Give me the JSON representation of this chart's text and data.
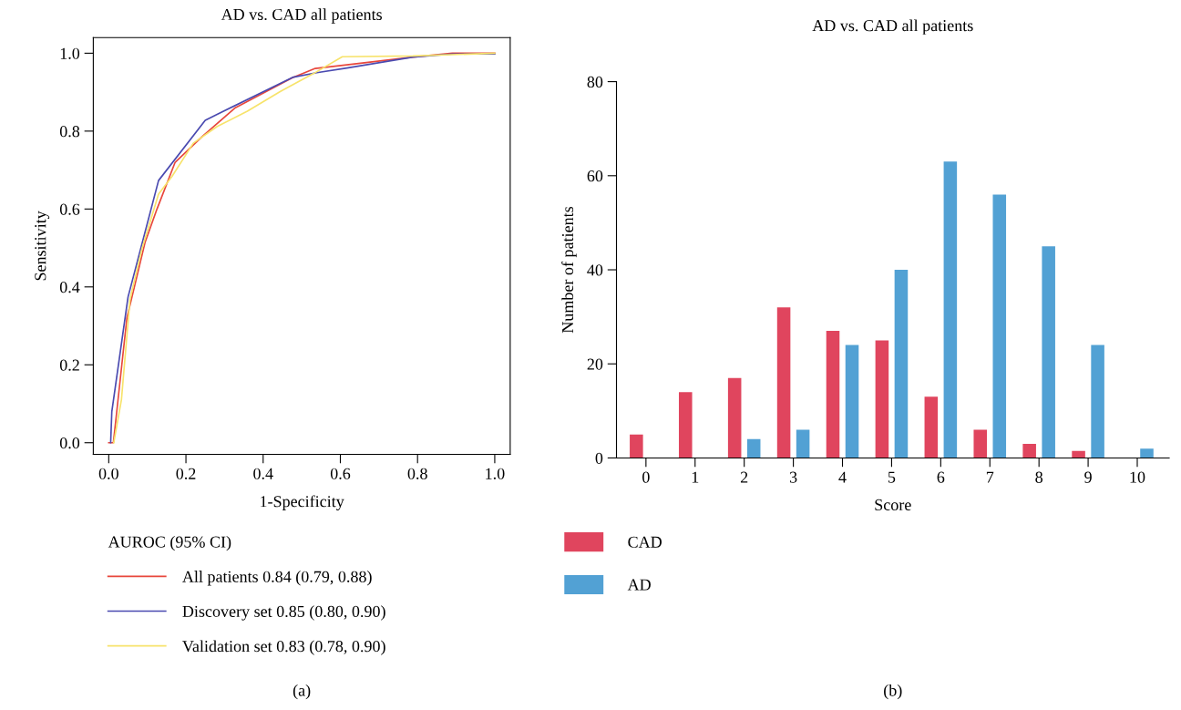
{
  "chart_data": [
    {
      "type": "line",
      "title": "AD vs. CAD all patients",
      "xlabel": "1-Specificity",
      "ylabel": "Sensitivity",
      "legend_title": "AUROC (95% CI)",
      "legend": "bottom",
      "annotations": [
        "(a)"
      ],
      "xlim": [
        -0.04,
        1.04
      ],
      "ylim": [
        -0.03,
        1.04
      ],
      "xticks": [
        {
          "value": 0,
          "label": "0.0"
        },
        0.2,
        0.4,
        0.6,
        0.8,
        {
          "value": 1,
          "label": "1.0"
        }
      ],
      "yticks": [
        {
          "value": 0,
          "label": "0.0"
        },
        0.2,
        0.4,
        0.6,
        0.8,
        {
          "value": 1,
          "label": "1.0"
        }
      ],
      "series": [
        {
          "name": "All patients 0.84 (0.79, 0.88)",
          "color": "#e8473c",
          "x": [
            0,
            0.012,
            0.047,
            0.094,
            0.125,
            0.172,
            0.242,
            0.328,
            0.476,
            0.535,
            0.617,
            0.788,
            0.89,
            1.0
          ],
          "values": [
            0,
            0,
            0.32,
            0.514,
            0.6,
            0.72,
            0.786,
            0.86,
            0.937,
            0.961,
            0.97,
            0.99,
            1.0,
            1.0
          ]
        },
        {
          "name": "Discovery set 0.85 (0.80, 0.90)",
          "color": "#4a4ab0",
          "x": [
            0.005,
            0.008,
            0.05,
            0.129,
            0.25,
            0.289,
            0.476,
            0.539,
            0.617,
            0.788,
            0.89,
            1.0
          ],
          "values": [
            0,
            0.08,
            0.374,
            0.673,
            0.828,
            0.847,
            0.938,
            0.95,
            0.962,
            0.99,
            0.998,
            0.998
          ]
        },
        {
          "name": "Validation set 0.83 (0.78, 0.90)",
          "color": "#f7e36b",
          "x": [
            0.013,
            0.033,
            0.055,
            0.086,
            0.129,
            0.164,
            0.219,
            0.281,
            0.359,
            0.445,
            0.531,
            0.605,
            0.788,
            1.0
          ],
          "values": [
            0,
            0.111,
            0.367,
            0.498,
            0.638,
            0.684,
            0.769,
            0.812,
            0.851,
            0.902,
            0.948,
            0.991,
            0.993,
            1.0
          ]
        }
      ]
    },
    {
      "type": "bar",
      "title": "AD vs. CAD all patients",
      "xlabel": "Score",
      "ylabel": "Number of patients",
      "legend": "bottom left",
      "annotations": [
        "(b)"
      ],
      "categories": [
        "0",
        "1",
        "2",
        "3",
        "4",
        "5",
        "6",
        "7",
        "8",
        "9",
        "10"
      ],
      "ylim": [
        0,
        80
      ],
      "yticks": [
        0,
        20,
        40,
        60,
        80
      ],
      "series": [
        {
          "name": "CAD",
          "color": "#e0455e",
          "values": [
            5,
            14,
            17,
            32,
            27,
            25,
            13,
            6,
            3,
            1.5,
            0
          ]
        },
        {
          "name": "AD",
          "color": "#52a1d4",
          "values": [
            0,
            0,
            4,
            6,
            24,
            40,
            63,
            56,
            45,
            24,
            2
          ]
        }
      ]
    }
  ]
}
